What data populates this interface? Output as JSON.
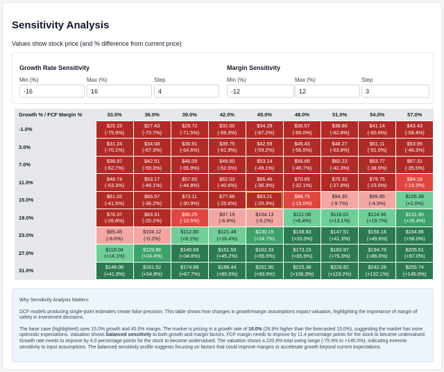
{
  "header": {
    "title": "Sensitivity Analysis",
    "subtitle": "Values show stock price (and % difference from current price)"
  },
  "growth_controls": {
    "title": "Growth Rate Sensitivity",
    "min_label": "Min (%)",
    "min_value": "-16",
    "max_label": "Max (%)",
    "max_value": "16",
    "step_label": "Step",
    "step_value": "4"
  },
  "margin_controls": {
    "title": "Margin Sensitivity",
    "min_label": "Min (%)",
    "min_value": "-12",
    "max_label": "Max (%)",
    "max_value": "12",
    "step_label": "Step",
    "step_value": "3"
  },
  "table": {
    "corner": "Growth % / FCF Margin %",
    "columns": [
      "33.0%",
      "36.0%",
      "39.0%",
      "42.0%",
      "45.0%",
      "48.0%",
      "51.0%",
      "54.0%",
      "57.0%"
    ],
    "rows": [
      {
        "label": "-1.0%",
        "cells": [
          [
            "$25.15",
            "(-75.9%)"
          ],
          [
            "$27.43",
            "(-73.7%)"
          ],
          [
            "$29.72",
            "(-71.5%)"
          ],
          [
            "$32.00",
            "(-69.3%)"
          ],
          [
            "$34.29",
            "(-67.2%)"
          ],
          [
            "$36.57",
            "(-65.0%)"
          ],
          [
            "$38.86",
            "(-62.8%)"
          ],
          [
            "$41.14",
            "(-60.6%)"
          ],
          [
            "$43.43",
            "(-58.4%)"
          ]
        ]
      },
      {
        "label": "3.0%",
        "cells": [
          [
            "$31.24",
            "(-70.1%)"
          ],
          [
            "$34.08",
            "(-67.3%)"
          ],
          [
            "$36.91",
            "(-64.6%)"
          ],
          [
            "$39.75",
            "(-61.9%)"
          ],
          [
            "$42.59",
            "(-59.2%)"
          ],
          [
            "$45.43",
            "(-56.5%)"
          ],
          [
            "$48.27",
            "(-53.8%)"
          ],
          [
            "$51.11",
            "(-51.0%)"
          ],
          [
            "$53.95",
            "(-48.3%)"
          ]
        ]
      },
      {
        "label": "7.0%",
        "cells": [
          [
            "$38.97",
            "(-62.7%)"
          ],
          [
            "$42.51",
            "(-59.3%)"
          ],
          [
            "$46.05",
            "(-55.9%)"
          ],
          [
            "$49.60",
            "(-52.5%)"
          ],
          [
            "$53.14",
            "(-49.1%)"
          ],
          [
            "$56.68",
            "(-45.7%)"
          ],
          [
            "$60.22",
            "(-42.3%)"
          ],
          [
            "$63.77",
            "(-38.9%)"
          ],
          [
            "$67.31",
            "(-35.5%)"
          ]
        ]
      },
      {
        "label": "11.0%",
        "cells": [
          [
            "$48.74",
            "(-53.3%)"
          ],
          [
            "$53.17",
            "(-49.1%)"
          ],
          [
            "$57.60",
            "(-44.8%)"
          ],
          [
            "$62.03",
            "(-40.6%)"
          ],
          [
            "$66.46",
            "(-36.3%)"
          ],
          [
            "$70.89",
            "(-32.1%)"
          ],
          [
            "$75.32",
            "(-27.8%)"
          ],
          [
            "$79.75",
            "(-23.6%)"
          ],
          [
            "$84.18",
            "(-19.3%)"
          ]
        ]
      },
      {
        "label": "15.0%",
        "cells": [
          [
            "$61.02",
            "(-41.5%)"
          ],
          [
            "$66.57",
            "(-36.2%)"
          ],
          [
            "$72.11",
            "(-30.9%)"
          ],
          [
            "$77.66",
            "(-25.6%)"
          ],
          [
            "$83.21",
            "(-20.3%)"
          ],
          [
            "$88.75",
            "(-15.0%)"
          ],
          [
            "$94.30",
            "(-9.7%)"
          ],
          [
            "$99.85",
            "(-4.3%)"
          ],
          [
            "$105.39",
            "(+1.0%)"
          ]
        ]
      },
      {
        "label": "19.0%",
        "cells": [
          [
            "$76.37",
            "(-26.8%)"
          ],
          [
            "$83.31",
            "(-20.2%)"
          ],
          [
            "$90.25",
            "(-13.5%)"
          ],
          [
            "$97.19",
            "(-6.9%)"
          ],
          [
            "$104.13",
            "(-0.2%)"
          ],
          [
            "$111.08",
            "(+6.4%)"
          ],
          [
            "$118.02",
            "(+13.1%)"
          ],
          [
            "$124.96",
            "(+19.7%)"
          ],
          [
            "$131.90",
            "(+26.4%)"
          ]
        ]
      },
      {
        "label": "23.0%",
        "cells": [
          [
            "$95.45",
            "(-8.6%)"
          ],
          [
            "$104.12",
            "(-0.2%)"
          ],
          [
            "$112.80",
            "(+8.1%)"
          ],
          [
            "$121.48",
            "(+16.4%)"
          ],
          [
            "$130.15",
            "(+24.7%)"
          ],
          [
            "$138.83",
            "(+33.0%)"
          ],
          [
            "$147.51",
            "(+41.3%)"
          ],
          [
            "$156.18",
            "(+49.6%)"
          ],
          [
            "$164.86",
            "(+58.0%)"
          ]
        ]
      },
      {
        "label": "27.0%",
        "cells": [
          [
            "$119.04",
            "(+14.1%)"
          ],
          [
            "$129.86",
            "(+24.4%)"
          ],
          [
            "$140.68",
            "(+34.8%)"
          ],
          [
            "$151.50",
            "(+45.2%)"
          ],
          [
            "$162.33",
            "(+55.5%)"
          ],
          [
            "$173.15",
            "(+65.9%)"
          ],
          [
            "$183.97",
            "(+76.3%)"
          ],
          [
            "$194.79",
            "(+86.6%)"
          ],
          [
            "$205.61",
            "(+97.0%)"
          ]
        ]
      },
      {
        "label": "31.0%",
        "cells": [
          [
            "$148.06",
            "(+41.9%)"
          ],
          [
            "$161.52",
            "(+54.8%)"
          ],
          [
            "$174.98",
            "(+67.7%)"
          ],
          [
            "$188.44",
            "(+80.5%)"
          ],
          [
            "$201.90",
            "(+93.5%)"
          ],
          [
            "$215.36",
            "(+106.3%)"
          ],
          [
            "$228.82",
            "(+119.2%)"
          ],
          [
            "$242.28",
            "(+132.1%)"
          ],
          [
            "$255.74",
            "(+145.0%)"
          ]
        ]
      }
    ],
    "base_row": 4,
    "base_col": 4
  },
  "colors": {
    "deep_red": "#b22a26",
    "mid_red": "#e0463f",
    "light_red": "#f4a7a2",
    "light_green": "#6fcf97",
    "mid_green": "#3da36b",
    "deep_green": "#2c7a51",
    "highlight": "#f0b429"
  },
  "explanation": {
    "heading": "Why Sensitivity Analysis Matters:",
    "para1": "DCF models producing single-point estimates create false precision. This table shows how changes in growth/margin assumptions impact valuation, highlighting the importance of margin of safety in investment decisions.",
    "para2_a": "The base case (highlighted) uses 15.0% growth and 45.0% margin. The market is pricing in a growth rate of ",
    "para2_b": "19.0%",
    "para2_c": " (26.9% higher than the forecasted 15.0%), suggesting the market has more optimistic expectations. Valuation shows ",
    "para2_d": "balanced sensitivity",
    "para2_e": " to both growth and margin factors. FCF margin needs to improve by 11.4 percentage points for the stock to become undervalued. Growth rate needs to improve by 4.0 percentage points for the stock to become undervalued. The valuation shows a 220.9% total swing range (-75.9% to +145.0%), indicating extreme sensitivity to input assumptions. The balanced sensitivity profile suggests focusing on factors that could improve margins or accelerate growth beyond current expectations."
  }
}
